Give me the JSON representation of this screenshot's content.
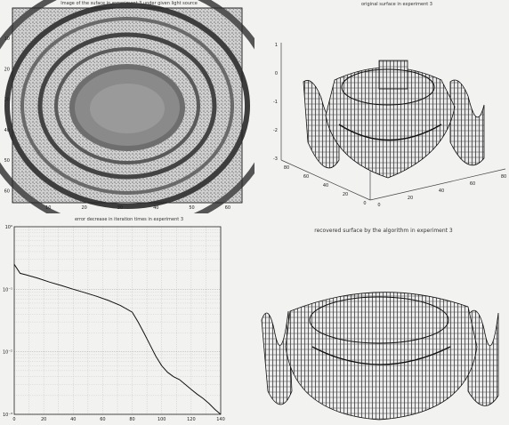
{
  "panels": {
    "top_left": {
      "title": "Image of the suface in experiment 3 under given light source",
      "x_ticks": [
        "10",
        "20",
        "30",
        "40",
        "50",
        "60"
      ],
      "y_ticks": [
        "10",
        "20",
        "30",
        "40",
        "50",
        "60"
      ]
    },
    "top_right": {
      "title": "original surface in experiment 3",
      "z_ticks": [
        "1",
        "0",
        "-1",
        "-2",
        "-3"
      ],
      "x_ticks": [
        "80",
        "60",
        "40",
        "20",
        "0"
      ],
      "y_ticks": [
        "0",
        "20",
        "40",
        "60",
        "80"
      ]
    },
    "bottom_right": {
      "title": "recovered surface by the algorithm in experiment 3"
    }
  },
  "chart_data": {
    "type": "line",
    "title": "error decrease in iteration times in experiment 3",
    "xlabel": "",
    "ylabel": "",
    "xlim": [
      0,
      140
    ],
    "ylim_log10": [
      -3,
      0
    ],
    "x_ticks": [
      "0",
      "20",
      "40",
      "60",
      "80",
      "100",
      "120",
      "140"
    ],
    "y_ticks": [
      "10⁰",
      "10⁻¹",
      "10⁻²",
      "10⁻³"
    ],
    "grid": true,
    "x": [
      0,
      4,
      8,
      16,
      24,
      32,
      40,
      48,
      56,
      64,
      72,
      80,
      84,
      88,
      92,
      96,
      100,
      104,
      108,
      112,
      116,
      120,
      124,
      128,
      132,
      136,
      140
    ],
    "y": [
      0.25,
      0.18,
      0.17,
      0.15,
      0.13,
      0.115,
      0.1,
      0.088,
      0.077,
      0.066,
      0.055,
      0.043,
      0.03,
      0.02,
      0.013,
      0.0085,
      0.006,
      0.0047,
      0.004,
      0.0036,
      0.003,
      0.0025,
      0.0021,
      0.0018,
      0.0015,
      0.0012,
      0.001
    ]
  }
}
